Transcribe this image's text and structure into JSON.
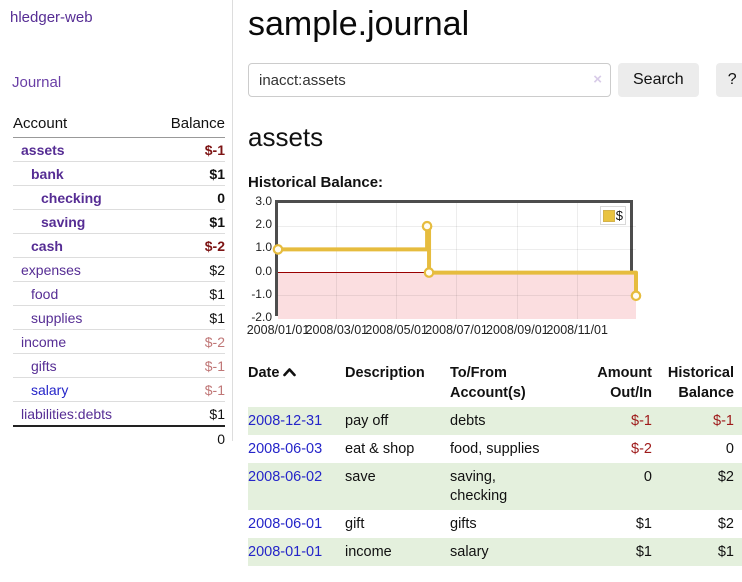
{
  "app": {
    "brand": "hledger-web",
    "nav_journal": "Journal"
  },
  "sidebar": {
    "header": {
      "account": "Account",
      "balance": "Balance"
    },
    "accounts": [
      {
        "name": "assets",
        "level": 1,
        "bold": true,
        "blue": false,
        "balance": "$-1",
        "balance_class": "negstrong"
      },
      {
        "name": "bank",
        "level": 2,
        "bold": true,
        "blue": false,
        "balance": "$1",
        "balance_class": ""
      },
      {
        "name": "checking",
        "level": 3,
        "bold": true,
        "blue": false,
        "balance": "0",
        "balance_class": ""
      },
      {
        "name": "saving",
        "level": 3,
        "bold": true,
        "blue": false,
        "balance": "$1",
        "balance_class": ""
      },
      {
        "name": "cash",
        "level": 2,
        "bold": true,
        "blue": false,
        "balance": "$-2",
        "balance_class": "negstrong"
      },
      {
        "name": "expenses",
        "level": 1,
        "bold": false,
        "blue": false,
        "balance": "$2",
        "balance_class": ""
      },
      {
        "name": "food",
        "level": 2,
        "bold": false,
        "blue": false,
        "balance": "$1",
        "balance_class": ""
      },
      {
        "name": "supplies",
        "level": 2,
        "bold": false,
        "blue": false,
        "balance": "$1",
        "balance_class": ""
      },
      {
        "name": "income",
        "level": 1,
        "bold": false,
        "blue": false,
        "balance": "$-2",
        "balance_class": "negmuted"
      },
      {
        "name": "gifts",
        "level": 2,
        "bold": false,
        "blue": false,
        "balance": "$-1",
        "balance_class": "negmuted"
      },
      {
        "name": "salary",
        "level": 2,
        "bold": false,
        "blue": true,
        "balance": "$-1",
        "balance_class": "negmuted"
      },
      {
        "name": "liabilities:debts",
        "level": 1,
        "bold": false,
        "blue": false,
        "balance": "$1",
        "balance_class": ""
      }
    ],
    "total": "0"
  },
  "main": {
    "title": "sample.journal",
    "search": {
      "query": "inacct:assets",
      "clear_icon": "×",
      "search_label": "Search",
      "help_label": "?"
    },
    "account_title": "assets",
    "chart_label": "Historical Balance:"
  },
  "chart_data": {
    "type": "line",
    "subtype": "step",
    "title": "Historical Balance",
    "legend": [
      {
        "label": "$",
        "color": "#e9c340"
      }
    ],
    "legend_position": "top-right",
    "x_range": [
      "2008-01-01",
      "2008-12-31"
    ],
    "ylim": [
      -2.0,
      3.0
    ],
    "y_ticks": [
      "3.0",
      "2.0",
      "1.0",
      "0.0",
      "-1.0",
      "-2.0"
    ],
    "x_ticks": [
      {
        "label": "2008/01/01",
        "date": "2008-01-01"
      },
      {
        "label": "2008/03/01",
        "date": "2008-03-01"
      },
      {
        "label": "2008/05/01",
        "date": "2008-05-01"
      },
      {
        "label": "2008/07/01",
        "date": "2008-07-01"
      },
      {
        "label": "2008/09/01",
        "date": "2008-09-01"
      },
      {
        "label": "2008/11/01",
        "date": "2008-11-01"
      }
    ],
    "grid": true,
    "series": [
      {
        "name": "$",
        "color": "#e6bc3e",
        "points": [
          {
            "date": "2008-01-01",
            "value": 1
          },
          {
            "date": "2008-06-01",
            "value": 2
          },
          {
            "date": "2008-06-02",
            "value": 2
          },
          {
            "date": "2008-06-03",
            "value": 0
          },
          {
            "date": "2008-12-31",
            "value": -1
          }
        ],
        "markers": [
          {
            "date": "2008-01-01",
            "value": 1
          },
          {
            "date": "2008-06-01",
            "value": 2
          },
          {
            "date": "2008-06-03",
            "value": 0
          },
          {
            "date": "2008-12-31",
            "value": -1
          }
        ]
      }
    ],
    "negative_region_color": "#fbdee0",
    "zero_line_color": "#990000"
  },
  "register": {
    "headers": {
      "date": "Date",
      "description": "Description",
      "tofrom": "To/From\nAccount(s)",
      "amount": "Amount\nOut/In",
      "historical": "Historical\nBalance"
    },
    "sort": {
      "column": "date",
      "direction": "asc"
    },
    "rows": [
      {
        "date": "2008-12-31",
        "description": "pay off",
        "tofrom": "debts",
        "amount": "$-1",
        "historical": "$-1"
      },
      {
        "date": "2008-06-03",
        "description": "eat & shop",
        "tofrom": "food, supplies",
        "amount": "$-2",
        "historical": "0"
      },
      {
        "date": "2008-06-02",
        "description": "save",
        "tofrom": "saving,\nchecking",
        "amount": "0",
        "historical": "$2"
      },
      {
        "date": "2008-06-01",
        "description": "gift",
        "tofrom": "gifts",
        "amount": "$1",
        "historical": "$2"
      },
      {
        "date": "2008-01-01",
        "description": "income",
        "tofrom": "salary",
        "amount": "$1",
        "historical": "$1"
      }
    ]
  }
}
